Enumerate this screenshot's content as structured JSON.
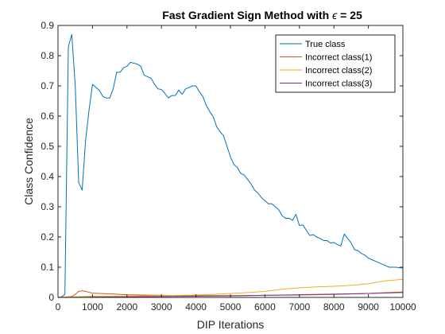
{
  "chart_data": {
    "type": "line",
    "title_main": "Fast Gradient Sign Method with ",
    "title_symbol": "ϵ",
    "title_tail": " = 25",
    "xlabel": "DIP Iterations",
    "ylabel": "Class Confidence",
    "xlim": [
      0,
      10000
    ],
    "ylim": [
      0,
      0.9
    ],
    "xticks": [
      "0",
      "1000",
      "2000",
      "3000",
      "4000",
      "5000",
      "6000",
      "7000",
      "8000",
      "9000",
      "10000"
    ],
    "xtick_values": [
      0,
      1000,
      2000,
      3000,
      4000,
      5000,
      6000,
      7000,
      8000,
      9000,
      10000
    ],
    "yticks": [
      "0",
      "0.1",
      "0.2",
      "0.3",
      "0.4",
      "0.5",
      "0.6",
      "0.7",
      "0.8",
      "0.9"
    ],
    "ytick_values": [
      0,
      0.1,
      0.2,
      0.3,
      0.4,
      0.5,
      0.6,
      0.7,
      0.8,
      0.9
    ],
    "grid": false,
    "legend_position": "top-right",
    "series": [
      {
        "name": "True class",
        "color": "#0072BD",
        "points": [
          [
            0,
            0
          ],
          [
            100,
            0.002
          ],
          [
            200,
            0.01
          ],
          [
            300,
            0.83
          ],
          [
            400,
            0.87
          ],
          [
            500,
            0.7
          ],
          [
            600,
            0.38
          ],
          [
            700,
            0.355
          ],
          [
            800,
            0.52
          ],
          [
            900,
            0.62
          ],
          [
            1000,
            0.705
          ],
          [
            1100,
            0.695
          ],
          [
            1200,
            0.685
          ],
          [
            1300,
            0.665
          ],
          [
            1400,
            0.66
          ],
          [
            1500,
            0.66
          ],
          [
            1600,
            0.69
          ],
          [
            1700,
            0.745
          ],
          [
            1800,
            0.745
          ],
          [
            1900,
            0.76
          ],
          [
            2000,
            0.765
          ],
          [
            2100,
            0.778
          ],
          [
            2200,
            0.775
          ],
          [
            2300,
            0.772
          ],
          [
            2400,
            0.765
          ],
          [
            2500,
            0.735
          ],
          [
            2600,
            0.73
          ],
          [
            2700,
            0.725
          ],
          [
            2800,
            0.705
          ],
          [
            2900,
            0.69
          ],
          [
            3000,
            0.688
          ],
          [
            3100,
            0.675
          ],
          [
            3200,
            0.66
          ],
          [
            3300,
            0.668
          ],
          [
            3400,
            0.668
          ],
          [
            3500,
            0.686
          ],
          [
            3600,
            0.672
          ],
          [
            3700,
            0.69
          ],
          [
            3800,
            0.695
          ],
          [
            3900,
            0.7
          ],
          [
            4000,
            0.7
          ],
          [
            4100,
            0.68
          ],
          [
            4200,
            0.665
          ],
          [
            4300,
            0.635
          ],
          [
            4400,
            0.615
          ],
          [
            4500,
            0.598
          ],
          [
            4600,
            0.565
          ],
          [
            4700,
            0.548
          ],
          [
            4800,
            0.535
          ],
          [
            4900,
            0.5
          ],
          [
            5000,
            0.465
          ],
          [
            5100,
            0.44
          ],
          [
            5200,
            0.43
          ],
          [
            5300,
            0.41
          ],
          [
            5400,
            0.405
          ],
          [
            5500,
            0.39
          ],
          [
            5600,
            0.375
          ],
          [
            5700,
            0.355
          ],
          [
            5800,
            0.345
          ],
          [
            5900,
            0.33
          ],
          [
            6000,
            0.32
          ],
          [
            6100,
            0.31
          ],
          [
            6200,
            0.31
          ],
          [
            6300,
            0.3
          ],
          [
            6400,
            0.29
          ],
          [
            6500,
            0.27
          ],
          [
            6600,
            0.262
          ],
          [
            6700,
            0.262
          ],
          [
            6800,
            0.255
          ],
          [
            6900,
            0.275
          ],
          [
            7000,
            0.238
          ],
          [
            7100,
            0.24
          ],
          [
            7200,
            0.222
          ],
          [
            7300,
            0.205
          ],
          [
            7400,
            0.208
          ],
          [
            7500,
            0.2
          ],
          [
            7600,
            0.195
          ],
          [
            7700,
            0.188
          ],
          [
            7800,
            0.188
          ],
          [
            7900,
            0.18
          ],
          [
            8000,
            0.182
          ],
          [
            8100,
            0.175
          ],
          [
            8200,
            0.17
          ],
          [
            8300,
            0.21
          ],
          [
            8400,
            0.195
          ],
          [
            8500,
            0.18
          ],
          [
            8600,
            0.158
          ],
          [
            8700,
            0.155
          ],
          [
            8800,
            0.145
          ],
          [
            8900,
            0.14
          ],
          [
            9000,
            0.13
          ],
          [
            9100,
            0.125
          ],
          [
            9200,
            0.12
          ],
          [
            9300,
            0.115
          ],
          [
            9400,
            0.11
          ],
          [
            9500,
            0.105
          ],
          [
            9600,
            0.1
          ],
          [
            9700,
            0.1
          ],
          [
            9800,
            0.1
          ],
          [
            9900,
            0.098
          ],
          [
            10000,
            0.098
          ]
        ]
      },
      {
        "name": "Incorrect class(1)",
        "color": "#D95319",
        "points": [
          [
            0,
            0
          ],
          [
            200,
            0.001
          ],
          [
            400,
            0.003
          ],
          [
            500,
            0.01
          ],
          [
            600,
            0.02
          ],
          [
            700,
            0.022
          ],
          [
            800,
            0.02
          ],
          [
            1000,
            0.014
          ],
          [
            1200,
            0.013
          ],
          [
            1500,
            0.012
          ],
          [
            2000,
            0.009
          ],
          [
            2500,
            0.008
          ],
          [
            3000,
            0.007
          ],
          [
            4000,
            0.006
          ],
          [
            5000,
            0.006
          ],
          [
            6000,
            0.007
          ],
          [
            7000,
            0.008
          ],
          [
            8000,
            0.01
          ],
          [
            9000,
            0.013
          ],
          [
            10000,
            0.018
          ]
        ]
      },
      {
        "name": "Incorrect class(2)",
        "color": "#EDB120",
        "points": [
          [
            0,
            0
          ],
          [
            500,
            0.002
          ],
          [
            1000,
            0.004
          ],
          [
            2000,
            0.005
          ],
          [
            3000,
            0.006
          ],
          [
            4000,
            0.008
          ],
          [
            4500,
            0.01
          ],
          [
            5000,
            0.013
          ],
          [
            5500,
            0.016
          ],
          [
            6000,
            0.02
          ],
          [
            6500,
            0.027
          ],
          [
            7000,
            0.032
          ],
          [
            7500,
            0.035
          ],
          [
            8000,
            0.037
          ],
          [
            8500,
            0.04
          ],
          [
            9000,
            0.045
          ],
          [
            9500,
            0.055
          ],
          [
            10000,
            0.06
          ]
        ]
      },
      {
        "name": "Incorrect class(3)",
        "color": "#7E2F8E",
        "points": [
          [
            0,
            0
          ],
          [
            1000,
            0.001
          ],
          [
            2000,
            0.002
          ],
          [
            3000,
            0.003
          ],
          [
            4000,
            0.004
          ],
          [
            5000,
            0.005
          ],
          [
            6000,
            0.007
          ],
          [
            7000,
            0.009
          ],
          [
            8000,
            0.011
          ],
          [
            9000,
            0.013
          ],
          [
            10000,
            0.016
          ]
        ]
      }
    ]
  }
}
